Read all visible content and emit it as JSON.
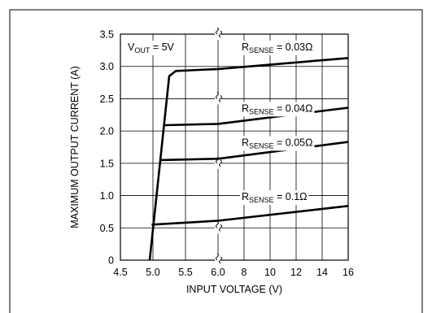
{
  "chart_data": {
    "type": "line",
    "xlabel": "INPUT VOLTAGE (V)",
    "ylabel": "MAXIMUM OUTPUT CURRENT (A)",
    "ylim": [
      0,
      3.5
    ],
    "y_ticks": [
      "0",
      "0.5",
      "1.0",
      "1.5",
      "2.0",
      "2.5",
      "3.0",
      "3.5"
    ],
    "x_axis_break": true,
    "x_segments": [
      {
        "range": [
          4.5,
          6.0
        ],
        "ticks": [
          "4.5",
          "5.0",
          "5.5",
          "6.0"
        ]
      },
      {
        "range": [
          6.0,
          16
        ],
        "ticks": [
          "8",
          "10",
          "12",
          "14",
          "16"
        ]
      }
    ],
    "grid": true,
    "annotation": {
      "main": "V",
      "sub": "OUT",
      "rest": " = 5V"
    },
    "series": [
      {
        "name": "RSENSE = 0.03Ω",
        "label": {
          "main": "R",
          "sub": "SENSE",
          "rest": " = 0.03Ω"
        },
        "points": [
          [
            4.95,
            0
          ],
          [
            5.25,
            2.85
          ],
          [
            5.35,
            2.93
          ],
          [
            6.0,
            2.96
          ],
          [
            16,
            3.13
          ]
        ]
      },
      {
        "name": "RSENSE = 0.04Ω",
        "label": {
          "main": "R",
          "sub": "SENSE",
          "rest": " = 0.04Ω"
        },
        "points": [
          [
            5.18,
            2.09
          ],
          [
            6.0,
            2.11
          ],
          [
            16,
            2.36
          ]
        ]
      },
      {
        "name": "RSENSE = 0.05Ω",
        "label": {
          "main": "R",
          "sub": "SENSE",
          "rest": " = 0.05Ω"
        },
        "points": [
          [
            5.1,
            1.55
          ],
          [
            6.0,
            1.57
          ],
          [
            16,
            1.83
          ]
        ]
      },
      {
        "name": "RSENSE = 0.1Ω",
        "label": {
          "main": "R",
          "sub": "SENSE",
          "rest": " = 0.1Ω"
        },
        "points": [
          [
            4.98,
            0.55
          ],
          [
            6.0,
            0.61
          ],
          [
            16,
            0.84
          ]
        ]
      }
    ]
  }
}
